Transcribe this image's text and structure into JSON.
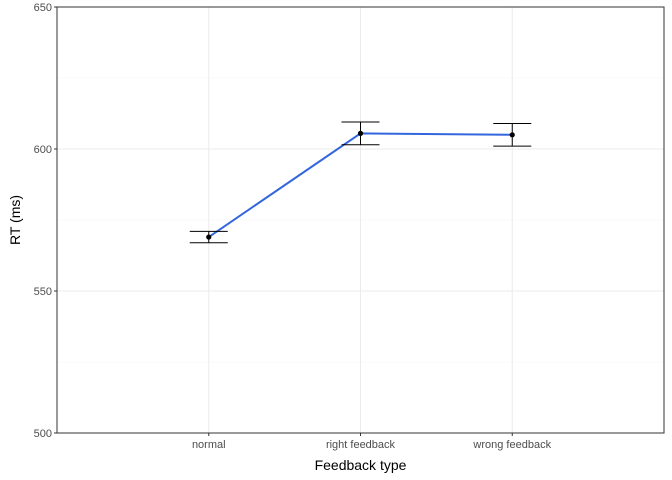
{
  "chart_data": {
    "type": "line",
    "title": "",
    "xlabel": "Feedback type",
    "ylabel": "RT (ms)",
    "categories": [
      "normal",
      "right feedback",
      "wrong feedback"
    ],
    "series": [
      {
        "values": [
          569,
          605.5,
          605
        ],
        "error_low": [
          567,
          601.5,
          601
        ],
        "error_high": [
          571,
          609.5,
          609
        ]
      }
    ],
    "ylim": [
      500,
      650
    ],
    "yticks": [
      500,
      550,
      600,
      650
    ],
    "grid": true,
    "legend": "none",
    "colors": {
      "line": "#3366dd",
      "point": "#000000",
      "errorbar": "#000000",
      "grid_major": "#ebebeb",
      "grid_minor": "#f5f5f5",
      "panel_border": "#333333"
    }
  }
}
